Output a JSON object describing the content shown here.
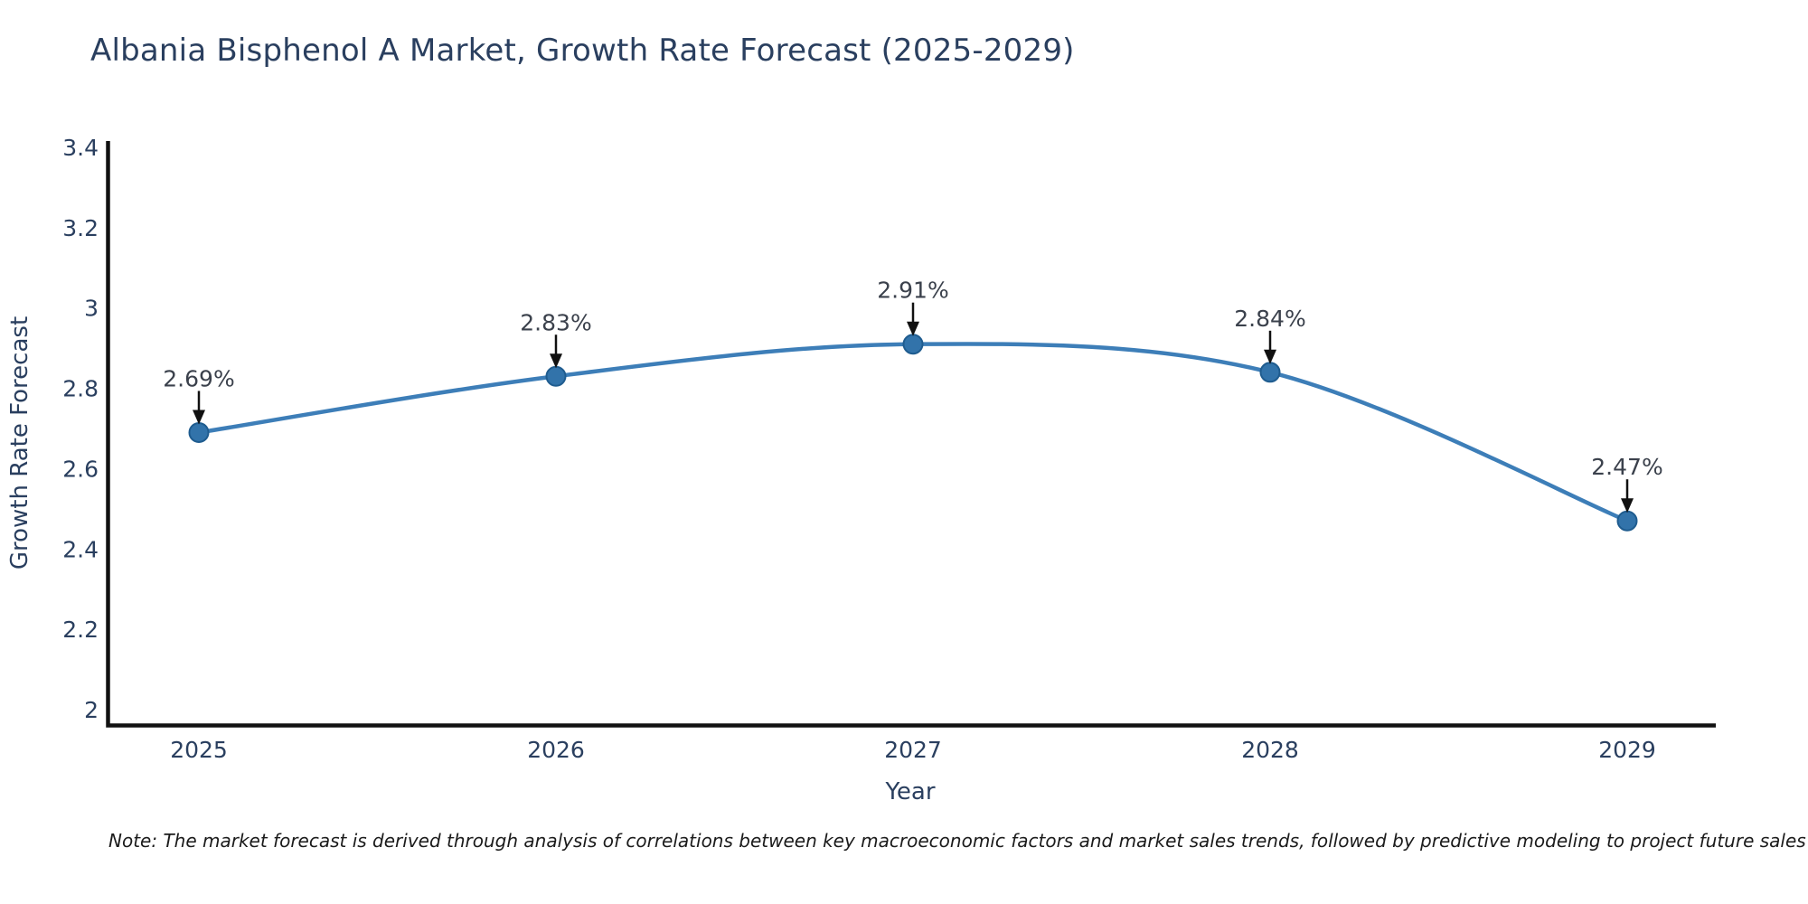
{
  "chart_data": {
    "type": "line",
    "title": "Albania Bisphenol A Market, Growth Rate Forecast (2025-2029)",
    "xlabel": "Year",
    "ylabel": "Growth Rate Forecast",
    "categories": [
      2025,
      2026,
      2027,
      2028,
      2029
    ],
    "series": [
      {
        "name": "Growth Rate Forecast",
        "values": [
          2.69,
          2.83,
          2.91,
          2.84,
          2.47
        ]
      }
    ],
    "point_labels": [
      "2.69%",
      "2.83%",
      "2.91%",
      "2.84%",
      "2.47%"
    ],
    "y_ticks": [
      3.4,
      3.2,
      3,
      2.8,
      2.6,
      2.4,
      2.2,
      2
    ],
    "ylim": [
      2,
      3.4
    ],
    "line_shape": "spline",
    "grid": false,
    "legend_position": "none",
    "colors": {
      "line": "#3d7eb8",
      "marker": "#3273aa",
      "marker_edge": "#1f5c8f",
      "axis": "#111111",
      "text": "#2a3f5f",
      "annotation_text": "#3b414c",
      "arrow": "#111111",
      "background": "#ffffff"
    }
  },
  "note": {
    "text": "Note: The market forecast is derived through analysis of correlations between key macroeconomic factors and market sales trends, followed by predictive modeling to project future sales"
  }
}
